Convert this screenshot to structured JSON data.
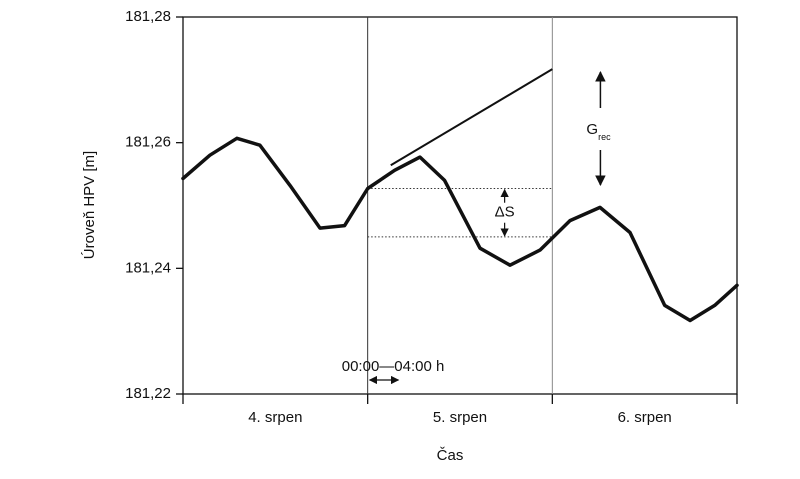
{
  "chart_data": {
    "type": "line",
    "ylabel": "Úroveň HPV [m]",
    "xlabel": "Čas",
    "categories": [
      "4. srpen",
      "5. srpen",
      "6. srpen"
    ],
    "xlim": [
      0,
      72
    ],
    "xticks": [
      0,
      24,
      48,
      72
    ],
    "ylim": [
      181.22,
      181.28
    ],
    "yticks": [
      {
        "value": 181.22,
        "label": "181,22"
      },
      {
        "value": 181.24,
        "label": "181,24"
      },
      {
        "value": 181.26,
        "label": "181,26"
      },
      {
        "value": 181.28,
        "label": "181,28"
      }
    ],
    "series": [
      {
        "color": "#111111",
        "x": [
          0,
          3.5,
          7,
          10,
          13.9,
          17.8,
          21,
          24,
          27.5,
          30.8,
          34,
          38.6,
          42.5,
          46.4,
          50.3,
          54.2,
          58.1,
          62.6,
          65.9,
          69.1,
          72
        ],
        "values": [
          181.2543,
          181.258,
          181.2607,
          181.2596,
          181.2532,
          181.2464,
          181.2468,
          181.2527,
          181.2556,
          181.2577,
          181.254,
          181.2432,
          181.2405,
          181.2429,
          181.2476,
          181.2497,
          181.2457,
          181.2341,
          181.2317,
          181.2341,
          181.2373
        ]
      }
    ],
    "trend": {
      "x": [
        27,
        48
      ],
      "values": [
        181.2564,
        181.2717
      ]
    },
    "markers": [
      24,
      48
    ],
    "reference_levels": [
      181.2527,
      181.245
    ],
    "annotations": [
      {
        "text": "00:00—04:00 h",
        "x": [
          24,
          28
        ]
      },
      {
        "text": "ΔS",
        "x": 41.8
      },
      {
        "text": "G",
        "sub": "rec",
        "x": 51
      }
    ]
  }
}
